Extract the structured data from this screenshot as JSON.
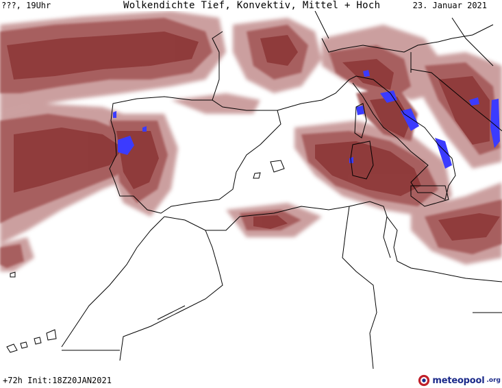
{
  "header": {
    "left": "???, 19Uhr",
    "title": "Wolkendichte  Tief, Konvektiv, Mittel + Hoch",
    "date": "23. Januar 2021"
  },
  "footer": {
    "run": "+72h  Init:18Z20JAN2021"
  },
  "logo": {
    "name": "meteopool",
    "suffix": ".org",
    "icon": "meteopool-logo-icon"
  },
  "colors": {
    "cloud_dense": "#8e3a3a",
    "cloud_medium": "#a65c5c",
    "cloud_light": "#c69595",
    "convective": "#3b3bff",
    "coastline": "#000000",
    "background": "#ffffff"
  }
}
